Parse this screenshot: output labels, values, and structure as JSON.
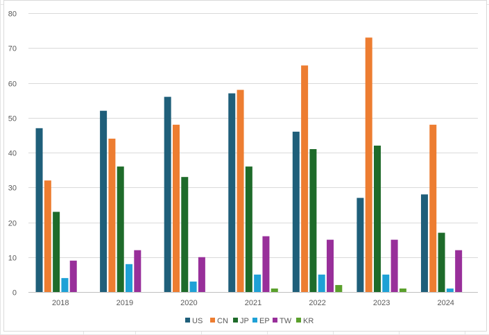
{
  "chart_data": {
    "type": "bar",
    "title": "",
    "xlabel": "",
    "ylabel": "",
    "categories": [
      "2018",
      "2019",
      "2020",
      "2021",
      "2022",
      "2023",
      "2024"
    ],
    "ylim": [
      0,
      80
    ],
    "yticks": [
      0,
      10,
      20,
      30,
      40,
      50,
      60,
      70,
      80
    ],
    "grid": true,
    "legend_position": "bottom",
    "series": [
      {
        "name": "US",
        "color": "#1f5f7a",
        "values": [
          47,
          52,
          56,
          57,
          46,
          27,
          28
        ]
      },
      {
        "name": "CN",
        "color": "#ed7d31",
        "values": [
          32,
          44,
          48,
          58,
          65,
          73,
          48
        ]
      },
      {
        "name": "JP",
        "color": "#1e6b2a",
        "values": [
          23,
          36,
          33,
          36,
          41,
          42,
          17
        ]
      },
      {
        "name": "EP",
        "color": "#1fa1d6",
        "values": [
          4,
          8,
          3,
          5,
          5,
          5,
          1
        ]
      },
      {
        "name": "TW",
        "color": "#982f9a",
        "values": [
          9,
          12,
          10,
          16,
          15,
          15,
          12
        ]
      },
      {
        "name": "KR",
        "color": "#5aa02c",
        "values": [
          0,
          0,
          0,
          1,
          2,
          1,
          0
        ]
      }
    ]
  }
}
